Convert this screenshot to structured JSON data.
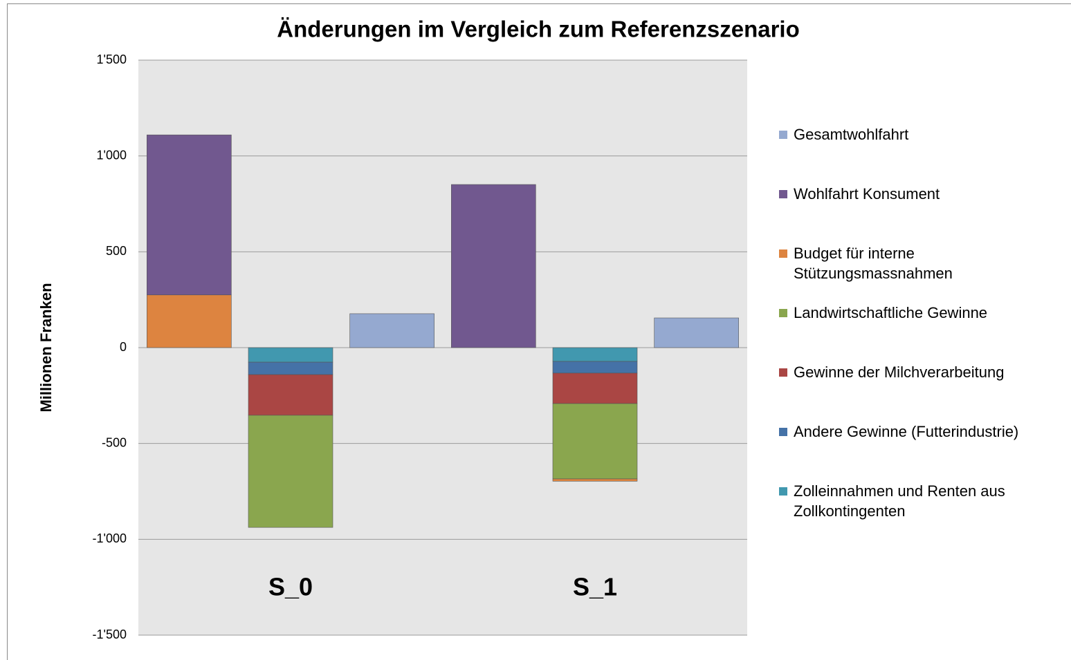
{
  "chart_data": {
    "type": "stacked_bar",
    "title": "Änderungen im Vergleich zum Referenzszenario",
    "y_label": "Millionen Franken",
    "categories": [
      null,
      "S_0",
      null,
      null,
      "S_1",
      null
    ],
    "series": [
      {
        "name": "Gesamtwohlfahrt",
        "color": "#95a9d0",
        "values": [
          null,
          null,
          177,
          null,
          null,
          155
        ]
      },
      {
        "name": "Wohlfahrt Konsument",
        "color": "#71588f",
        "values": [
          835,
          null,
          null,
          851,
          null,
          null
        ]
      },
      {
        "name": "Budget für interne Stützungsmassnahmen",
        "color": "#dd8440",
        "values": [
          275,
          null,
          null,
          null,
          -12,
          null
        ]
      },
      {
        "name": "Landwirtschaftliche Gewinne",
        "color": "#8aa64e",
        "values": [
          null,
          -585,
          null,
          null,
          -393,
          null
        ]
      },
      {
        "name": "Gewinne der Milchverarbeitung",
        "color": "#aa4644",
        "values": [
          null,
          -212,
          null,
          null,
          -159,
          null
        ]
      },
      {
        "name": "Andere Gewinne (Futterindustrie)",
        "color": "#4572a7",
        "values": [
          null,
          -65,
          null,
          null,
          -61,
          null
        ]
      },
      {
        "name": "Zolleinnahmen und Renten aus Zollkontingenten",
        "color": "#4198af",
        "values": [
          null,
          -76,
          null,
          null,
          -72,
          null
        ]
      }
    ],
    "ylim": [
      -1500,
      1500
    ],
    "yticks": [
      {
        "value": -1500,
        "label": "-1'500"
      },
      {
        "value": -1000,
        "label": "-1'000"
      },
      -500,
      0,
      500,
      {
        "value": 1000,
        "label": "1'000"
      },
      {
        "value": 1500,
        "label": "1'500"
      }
    ],
    "grid": true,
    "legend": "right"
  }
}
